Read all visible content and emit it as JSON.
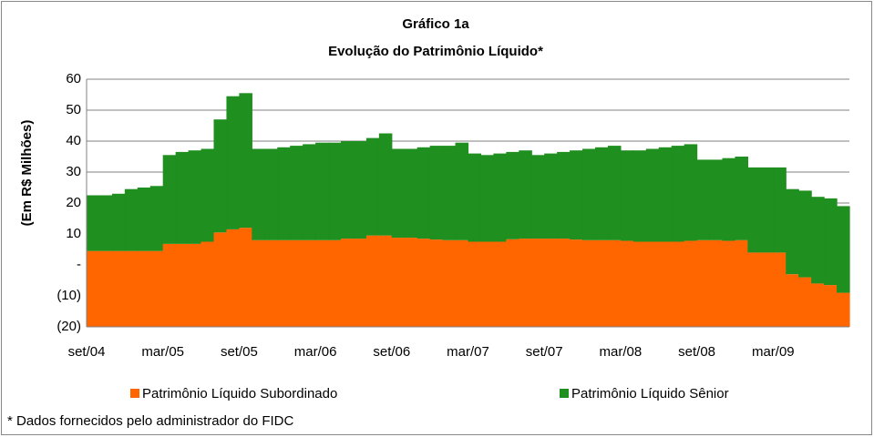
{
  "chart_data": {
    "type": "stacked-area",
    "title": "Gráfico 1a",
    "subtitle": "Evolução do Patrimônio Líquido*",
    "y_label": "(Em R$ Milhões)",
    "note": "* Dados fornecidos pelo administrador do FIDC",
    "categories": [
      "set/04",
      null,
      null,
      null,
      null,
      null,
      "mar/05",
      null,
      null,
      null,
      null,
      null,
      "set/05",
      null,
      null,
      null,
      null,
      null,
      "mar/06",
      null,
      null,
      null,
      null,
      null,
      "set/06",
      null,
      null,
      null,
      null,
      null,
      "mar/07",
      null,
      null,
      null,
      null,
      null,
      "set/07",
      null,
      null,
      null,
      null,
      null,
      "mar/08",
      null,
      null,
      null,
      null,
      null,
      "set/08",
      null,
      null,
      null,
      null,
      null,
      "mar/09",
      null,
      null,
      null,
      null,
      null
    ],
    "series": [
      {
        "name": "Patrimônio Líquido Subordinado",
        "color": "#ff6600",
        "values": [
          4.5,
          4.5,
          4.5,
          4.5,
          4.5,
          4.5,
          6.8,
          6.8,
          6.8,
          7.5,
          10.5,
          11.5,
          12,
          8,
          8,
          8,
          8,
          8,
          8,
          8,
          8.5,
          8.5,
          9.5,
          9.5,
          8.8,
          8.8,
          8.5,
          8.2,
          8,
          8,
          7.5,
          7.5,
          7.5,
          8.3,
          8.5,
          8.5,
          8.5,
          8.5,
          8.2,
          8,
          8,
          8,
          7.8,
          7.5,
          7.5,
          7.5,
          7.5,
          7.8,
          8,
          8,
          7.8,
          8,
          4,
          4,
          4,
          -3,
          -4,
          -6,
          -6.5,
          -9
        ]
      },
      {
        "name": "Patrimônio Líquido Sênior",
        "color": "#1f8f1f",
        "values": [
          18,
          18,
          18.5,
          20,
          20.5,
          21,
          28.7,
          29.7,
          30.2,
          30,
          36.5,
          43,
          43.5,
          29.5,
          29.5,
          30,
          30.5,
          31,
          31.5,
          31.5,
          31.5,
          31.5,
          31.5,
          33,
          28.7,
          28.7,
          29.5,
          30.3,
          30.5,
          31.5,
          28.5,
          28,
          28.5,
          28.2,
          28.5,
          27,
          27.5,
          28,
          28.8,
          29.5,
          30,
          30.5,
          29.2,
          29.5,
          30,
          30.5,
          31,
          31.2,
          26,
          26,
          26.7,
          27,
          27.5,
          27.5,
          27.5,
          27.5,
          28,
          28,
          28,
          28
        ]
      }
    ],
    "ylim": [
      -20,
      60
    ],
    "yticks": [
      {
        "value": -20,
        "label": "(20)"
      },
      {
        "value": -10,
        "label": "(10)"
      },
      {
        "value": 0,
        "label": "-"
      },
      10,
      20,
      30,
      40,
      50,
      60
    ],
    "grid": true,
    "legend": "bottom"
  }
}
